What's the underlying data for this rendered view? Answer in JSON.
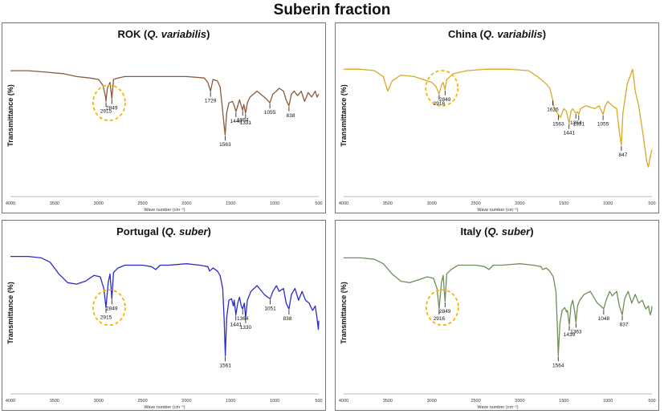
{
  "figure_title": "Suberin fraction",
  "colors": {
    "circle": "#f2b800",
    "axis": "#bbbbbb",
    "text": "#111111"
  },
  "chart_data": [
    {
      "type": "line",
      "title_main": "ROK",
      "title_species": "Q. variabilis",
      "title_open": " (",
      "title_close": ")",
      "color": "#8a5a3c",
      "xlabel": "Wave number (cm⁻¹)",
      "ylabel": "Transmittance (%)",
      "xlim": [
        4000,
        500
      ],
      "ylim": [
        0,
        100
      ],
      "ticks": [
        4000,
        3500,
        3000,
        2500,
        2000,
        1500,
        1000,
        500
      ],
      "circle_center": [
        2880,
        62
      ],
      "series": {
        "x": [
          4000,
          3800,
          3600,
          3400,
          3250,
          3100,
          3000,
          2950,
          2920,
          2915,
          2900,
          2870,
          2849,
          2830,
          2780,
          2700,
          2500,
          2300,
          2000,
          1800,
          1760,
          1729,
          1700,
          1650,
          1620,
          1600,
          1580,
          1563,
          1545,
          1520,
          1480,
          1460,
          1440,
          1420,
          1400,
          1380,
          1364,
          1350,
          1331,
          1310,
          1280,
          1200,
          1100,
          1055,
          1020,
          980,
          950,
          900,
          870,
          838,
          810,
          780,
          740,
          700,
          660,
          620,
          580,
          540,
          520,
          500
        ],
        "y": [
          84,
          84,
          83,
          82,
          80,
          79,
          78,
          74,
          66,
          63,
          72,
          76,
          65,
          78,
          79,
          80,
          80,
          80,
          80,
          79,
          76,
          70,
          78,
          77,
          73,
          62,
          50,
          40,
          55,
          62,
          63,
          60,
          56,
          60,
          64,
          60,
          57,
          61,
          55,
          62,
          66,
          70,
          65,
          62,
          68,
          70,
          72,
          70,
          64,
          60,
          68,
          70,
          67,
          70,
          63,
          69,
          66,
          70,
          66,
          68
        ]
      },
      "peaks": [
        {
          "x": 2915,
          "y": 63,
          "label": "2915"
        },
        {
          "x": 2849,
          "y": 65,
          "label": "2849"
        },
        {
          "x": 1729,
          "y": 70,
          "label": "1729"
        },
        {
          "x": 1563,
          "y": 40,
          "label": "1563"
        },
        {
          "x": 1440,
          "y": 56,
          "label": "1440"
        },
        {
          "x": 1364,
          "y": 57,
          "label": "1364"
        },
        {
          "x": 1331,
          "y": 55,
          "label": "1331"
        },
        {
          "x": 1055,
          "y": 62,
          "label": "1055"
        },
        {
          "x": 838,
          "y": 60,
          "label": "838"
        }
      ]
    },
    {
      "type": "line",
      "title_main": "China",
      "title_species": "Q. variabilis",
      "title_open": " (",
      "title_close": ")",
      "color": "#d9a928",
      "xlabel": "Wave number (cm⁻¹)",
      "ylabel": "Transmittance (%)",
      "xlim": [
        4000,
        500
      ],
      "ylim": [
        0,
        100
      ],
      "ticks": [
        4000,
        3500,
        3000,
        2500,
        2000,
        1500,
        1000,
        500
      ],
      "circle_center": [
        2885,
        72
      ],
      "series": {
        "x": [
          4000,
          3800,
          3650,
          3550,
          3500,
          3450,
          3350,
          3200,
          3100,
          3000,
          2950,
          2916,
          2890,
          2870,
          2849,
          2830,
          2750,
          2600,
          2400,
          2100,
          1900,
          1800,
          1700,
          1660,
          1626,
          1610,
          1563,
          1540,
          1500,
          1470,
          1441,
          1420,
          1400,
          1380,
          1364,
          1345,
          1331,
          1310,
          1250,
          1150,
          1100,
          1055,
          1030,
          1000,
          950,
          900,
          870,
          847,
          830,
          780,
          720,
          690,
          650,
          600,
          560,
          540,
          520,
          500
        ],
        "y": [
          85,
          85,
          84,
          80,
          70,
          77,
          81,
          80,
          78,
          76,
          73,
          68,
          74,
          76,
          71,
          78,
          82,
          84,
          85,
          85,
          84,
          80,
          75,
          72,
          64,
          58,
          54,
          52,
          58,
          56,
          48,
          56,
          58,
          56,
          55,
          56,
          54,
          58,
          60,
          58,
          60,
          54,
          60,
          63,
          60,
          58,
          42,
          33,
          55,
          75,
          85,
          70,
          60,
          40,
          22,
          18,
          25,
          30
        ]
      },
      "peaks": [
        {
          "x": 2916,
          "y": 68,
          "label": "2916"
        },
        {
          "x": 2849,
          "y": 71,
          "label": "2849"
        },
        {
          "x": 1626,
          "y": 64,
          "label": "1626"
        },
        {
          "x": 1563,
          "y": 54,
          "label": "1563"
        },
        {
          "x": 1441,
          "y": 48,
          "label": "1441"
        },
        {
          "x": 1364,
          "y": 55,
          "label": "1364"
        },
        {
          "x": 1331,
          "y": 54,
          "label": "1331"
        },
        {
          "x": 1055,
          "y": 54,
          "label": "1055"
        },
        {
          "x": 847,
          "y": 33,
          "label": "847"
        }
      ]
    },
    {
      "type": "line",
      "title_main": "Portugal",
      "title_species": "Q. suber",
      "title_open": " (",
      "title_close": ")",
      "color": "#2a2acc",
      "xlabel": "Wave number (cm⁻¹)",
      "ylabel": "Transmittance (%)",
      "xlim": [
        4000,
        500
      ],
      "ylim": [
        0,
        100
      ],
      "ticks": [
        4000,
        3500,
        3000,
        2500,
        2000,
        1500,
        1000,
        500
      ],
      "circle_center": [
        2880,
        57
      ],
      "series": {
        "x": [
          4000,
          3800,
          3650,
          3550,
          3450,
          3350,
          3250,
          3150,
          3050,
          2980,
          2940,
          2915,
          2890,
          2870,
          2849,
          2830,
          2780,
          2700,
          2600,
          2500,
          2400,
          2350,
          2300,
          2200,
          2000,
          1850,
          1760,
          1740,
          1700,
          1650,
          1620,
          1590,
          1575,
          1561,
          1545,
          1520,
          1490,
          1470,
          1460,
          1441,
          1420,
          1400,
          1380,
          1364,
          1345,
          1330,
          1310,
          1270,
          1200,
          1120,
          1080,
          1051,
          1020,
          980,
          950,
          900,
          870,
          838,
          810,
          770,
          730,
          690,
          650,
          610,
          570,
          540,
          520,
          505,
          500
        ],
        "y": [
          92,
          92,
          91,
          88,
          80,
          74,
          73,
          75,
          79,
          78,
          70,
          57,
          74,
          80,
          63,
          81,
          84,
          86,
          86,
          86,
          85,
          83,
          86,
          86,
          87,
          86,
          85,
          82,
          84,
          82,
          79,
          70,
          50,
          24,
          50,
          62,
          63,
          58,
          62,
          52,
          60,
          64,
          58,
          56,
          60,
          50,
          62,
          68,
          72,
          66,
          64,
          63,
          68,
          72,
          68,
          70,
          60,
          56,
          66,
          70,
          62,
          68,
          62,
          60,
          55,
          58,
          50,
          42,
          48
        ]
      },
      "peaks": [
        {
          "x": 2915,
          "y": 57,
          "label": "2915"
        },
        {
          "x": 2849,
          "y": 63,
          "label": "2849"
        },
        {
          "x": 1561,
          "y": 24,
          "label": "1561"
        },
        {
          "x": 1441,
          "y": 52,
          "label": "1441"
        },
        {
          "x": 1364,
          "y": 56,
          "label": "1364"
        },
        {
          "x": 1330,
          "y": 50,
          "label": "1330"
        },
        {
          "x": 1051,
          "y": 63,
          "label": "1051"
        },
        {
          "x": 838,
          "y": 56,
          "label": "838"
        }
      ]
    },
    {
      "type": "line",
      "title_main": "Italy",
      "title_species": "Q. suber",
      "title_open": " (",
      "title_close": ")",
      "color": "#6d8f57",
      "xlabel": "Wave number (cm⁻¹)",
      "ylabel": "Transmittance (%)",
      "xlim": [
        4000,
        500
      ],
      "ylim": [
        0,
        100
      ],
      "ticks": [
        4000,
        3500,
        3000,
        2500,
        2000,
        1500,
        1000,
        500
      ],
      "circle_center": [
        2880,
        57
      ],
      "series": {
        "x": [
          4000,
          3800,
          3650,
          3550,
          3450,
          3350,
          3250,
          3150,
          3050,
          2980,
          2940,
          2916,
          2890,
          2870,
          2849,
          2830,
          2780,
          2700,
          2600,
          2500,
          2400,
          2350,
          2300,
          2200,
          2000,
          1850,
          1760,
          1740,
          1700,
          1660,
          1620,
          1590,
          1575,
          1564,
          1545,
          1520,
          1490,
          1470,
          1460,
          1439,
          1420,
          1400,
          1380,
          1363,
          1345,
          1320,
          1270,
          1200,
          1120,
          1080,
          1048,
          1020,
          980,
          950,
          900,
          870,
          837,
          810,
          770,
          730,
          690,
          650,
          610,
          570,
          540,
          520,
          505,
          500
        ],
        "y": [
          91,
          91,
          90,
          87,
          80,
          75,
          74,
          76,
          78,
          77,
          70,
          56,
          74,
          79,
          61,
          80,
          83,
          86,
          86,
          86,
          85,
          83,
          86,
          86,
          87,
          86,
          85,
          83,
          84,
          82,
          78,
          68,
          45,
          24,
          46,
          55,
          57,
          54,
          55,
          45,
          58,
          62,
          55,
          47,
          58,
          62,
          66,
          68,
          60,
          58,
          56,
          62,
          68,
          65,
          68,
          58,
          52,
          63,
          68,
          60,
          66,
          60,
          62,
          56,
          58,
          52,
          55,
          58
        ]
      },
      "peaks": [
        {
          "x": 2916,
          "y": 56,
          "label": "2916"
        },
        {
          "x": 2849,
          "y": 61,
          "label": "2849"
        },
        {
          "x": 1564,
          "y": 24,
          "label": "1564"
        },
        {
          "x": 1439,
          "y": 45,
          "label": "1439"
        },
        {
          "x": 1363,
          "y": 47,
          "label": "1363"
        },
        {
          "x": 1048,
          "y": 56,
          "label": "1048"
        },
        {
          "x": 837,
          "y": 52,
          "label": "837"
        }
      ]
    }
  ]
}
